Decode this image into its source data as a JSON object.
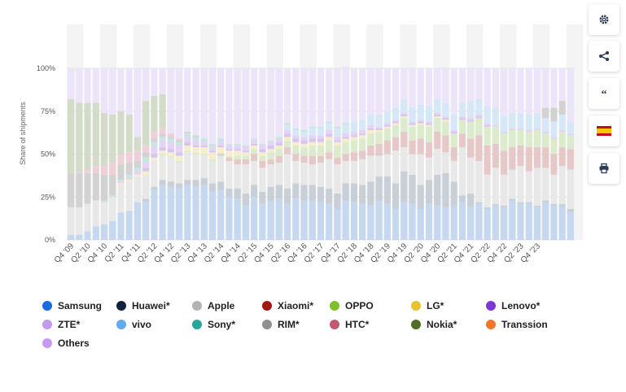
{
  "chart_data": {
    "type": "bar",
    "stacked": true,
    "ylabel": "Share of shipments",
    "ylim": [
      0,
      100
    ],
    "yticks": [
      "0%",
      "25%",
      "50%",
      "75%",
      "100%"
    ],
    "xtick_labels": [
      "Q4 '09",
      "Q2 '10",
      "Q4 '10",
      "Q2 '11",
      "Q4 '11",
      "Q2 '12",
      "Q4 '12",
      "Q2 '13",
      "Q4 '13",
      "Q2 '14",
      "Q4 '14",
      "Q2 '15",
      "Q4 '15",
      "Q2 '16",
      "Q4 '16",
      "Q2 '17",
      "Q4 '17",
      "Q2 '18",
      "Q4 '18",
      "Q2 '19",
      "Q4 '19",
      "Q2 '20",
      "Q4 '20",
      "Q2 '21",
      "Q4 '21",
      "Q2 '22",
      "Q4 '22",
      "Q2 '23",
      "Q4 '23"
    ],
    "series": [
      {
        "name": "Samsung",
        "color": "#c5d8f0"
      },
      {
        "name": "Huawei*",
        "color": "#c9cfd6"
      },
      {
        "name": "Apple",
        "color": "#e8e8e8"
      },
      {
        "name": "Xiaomi*",
        "color": "#e6c8c8"
      },
      {
        "name": "OPPO",
        "color": "#dcebcb"
      },
      {
        "name": "LG*",
        "color": "#f6edcc"
      },
      {
        "name": "Lenovo*",
        "color": "#d7c4f0"
      },
      {
        "name": "ZTE*",
        "color": "#e5d3f6"
      },
      {
        "name": "vivo",
        "color": "#d6e8f8"
      },
      {
        "name": "Sony*",
        "color": "#c8e6e1"
      },
      {
        "name": "RIM*",
        "color": "#d2d2d2"
      },
      {
        "name": "HTC*",
        "color": "#efcfd8"
      },
      {
        "name": "Nokia*",
        "color": "#d2dcc9"
      },
      {
        "name": "Transsion",
        "color": "#f8d6c4"
      },
      {
        "name": "Others",
        "color": "#ece4f8"
      }
    ],
    "values": [
      [
        3,
        0,
        16,
        0,
        0,
        0,
        0,
        0,
        0,
        0,
        20,
        0,
        43,
        0,
        18
      ],
      [
        3,
        0,
        16,
        0,
        0,
        0,
        0,
        0,
        0,
        0,
        20,
        1,
        40,
        0,
        20
      ],
      [
        5,
        0,
        16,
        0,
        0,
        0,
        0,
        0,
        0,
        0,
        18,
        2,
        39,
        0,
        20
      ],
      [
        8,
        0,
        15,
        0,
        0,
        0,
        0,
        0,
        0,
        0,
        16,
        4,
        37,
        0,
        20
      ],
      [
        9,
        0,
        13,
        0,
        0,
        0,
        0,
        0,
        0,
        1,
        15,
        5,
        31,
        0,
        26
      ],
      [
        11,
        0,
        14,
        0,
        0,
        0,
        0,
        0,
        0,
        1,
        12,
        7,
        28,
        0,
        27
      ],
      [
        16,
        0,
        16,
        0,
        0,
        1,
        0,
        1,
        0,
        1,
        9,
        6,
        25,
        0,
        25
      ],
      [
        17,
        0,
        17,
        0,
        0,
        1,
        0,
        1,
        0,
        2,
        7,
        6,
        22,
        0,
        27
      ],
      [
        22,
        0,
        15,
        0,
        0,
        1,
        0,
        2,
        0,
        2,
        4,
        6,
        8,
        0,
        40
      ],
      [
        22,
        2,
        14,
        0,
        0,
        2,
        2,
        3,
        0,
        3,
        3,
        4,
        26,
        0,
        19
      ],
      [
        29,
        2,
        15,
        0,
        0,
        2,
        2,
        4,
        0,
        3,
        2,
        4,
        21,
        0,
        16
      ],
      [
        32,
        3,
        14,
        0,
        1,
        2,
        2,
        4,
        0,
        2,
        2,
        3,
        20,
        0,
        15
      ],
      [
        31,
        3,
        14,
        0,
        1,
        2,
        2,
        4,
        0,
        2,
        1,
        2,
        0,
        0,
        38
      ],
      [
        30,
        3,
        12,
        0,
        1,
        3,
        2,
        4,
        0,
        2,
        1,
        1,
        0,
        0,
        41
      ],
      [
        32,
        3,
        16,
        0,
        1,
        3,
        2,
        3,
        0,
        2,
        1,
        0,
        0,
        0,
        37
      ],
      [
        31,
        4,
        15,
        0,
        1,
        3,
        1,
        3,
        0,
        2,
        1,
        0,
        0,
        0,
        39
      ],
      [
        32,
        4,
        13,
        0,
        1,
        4,
        1,
        2,
        0,
        2,
        0,
        0,
        0,
        0,
        41
      ],
      [
        28,
        5,
        13,
        0,
        1,
        4,
        1,
        2,
        0,
        2,
        0,
        0,
        0,
        0,
        44
      ],
      [
        29,
        5,
        15,
        1,
        1,
        3,
        1,
        2,
        0,
        2,
        0,
        0,
        0,
        0,
        41
      ],
      [
        25,
        5,
        16,
        2,
        1,
        3,
        1,
        2,
        0,
        1,
        0,
        0,
        0,
        0,
        44
      ],
      [
        24,
        6,
        14,
        3,
        2,
        3,
        1,
        2,
        0,
        1,
        0,
        0,
        0,
        0,
        44
      ],
      [
        20,
        7,
        17,
        3,
        2,
        2,
        1,
        2,
        0,
        1,
        0,
        0,
        0,
        0,
        45
      ],
      [
        25,
        7,
        14,
        4,
        3,
        2,
        1,
        2,
        0,
        1,
        0,
        0,
        0,
        0,
        41
      ],
      [
        21,
        7,
        14,
        4,
        3,
        2,
        2,
        2,
        0,
        1,
        0,
        0,
        0,
        0,
        44
      ],
      [
        23,
        8,
        13,
        3,
        4,
        2,
        2,
        2,
        0,
        1,
        0,
        0,
        0,
        0,
        42
      ],
      [
        24,
        8,
        13,
        4,
        4,
        2,
        2,
        2,
        0,
        1,
        0,
        0,
        0,
        0,
        40
      ],
      [
        21,
        9,
        20,
        4,
        4,
        2,
        2,
        2,
        3,
        1,
        0,
        0,
        0,
        0,
        32
      ],
      [
        24,
        9,
        13,
        4,
        5,
        2,
        2,
        2,
        3,
        1,
        0,
        0,
        0,
        0,
        35
      ],
      [
        23,
        9,
        13,
        4,
        5,
        2,
        2,
        2,
        3,
        1,
        0,
        0,
        0,
        0,
        36
      ],
      [
        23,
        9,
        12,
        5,
        6,
        2,
        2,
        2,
        4,
        1,
        0,
        0,
        0,
        0,
        34
      ],
      [
        22,
        9,
        14,
        4,
        6,
        2,
        2,
        2,
        4,
        1,
        0,
        0,
        0,
        0,
        34
      ],
      [
        21,
        9,
        17,
        4,
        7,
        2,
        2,
        2,
        4,
        1,
        0,
        0,
        0,
        0,
        31
      ],
      [
        18,
        9,
        17,
        4,
        7,
        2,
        1,
        2,
        5,
        1,
        0,
        0,
        0,
        0,
        34
      ],
      [
        23,
        10,
        13,
        4,
        7,
        2,
        1,
        2,
        5,
        1,
        0,
        0,
        0,
        0,
        33
      ],
      [
        22,
        11,
        13,
        5,
        7,
        2,
        1,
        2,
        6,
        0,
        0,
        0,
        0,
        0,
        31
      ],
      [
        21,
        11,
        15,
        5,
        7,
        2,
        1,
        2,
        6,
        0,
        0,
        0,
        0,
        0,
        30
      ],
      [
        20,
        14,
        15,
        6,
        7,
        2,
        1,
        2,
        6,
        0,
        0,
        0,
        0,
        0,
        27
      ],
      [
        23,
        14,
        12,
        7,
        7,
        1,
        1,
        1,
        7,
        0,
        0,
        0,
        0,
        0,
        27
      ],
      [
        21,
        16,
        13,
        8,
        7,
        1,
        1,
        1,
        7,
        0,
        0,
        0,
        0,
        0,
        25
      ],
      [
        18,
        15,
        19,
        8,
        7,
        1,
        1,
        1,
        7,
        0,
        0,
        0,
        0,
        0,
        23
      ],
      [
        22,
        18,
        14,
        9,
        8,
        1,
        1,
        1,
        8,
        0,
        0,
        0,
        0,
        0,
        18
      ],
      [
        21,
        17,
        12,
        8,
        8,
        1,
        1,
        1,
        8,
        0,
        0,
        0,
        0,
        0,
        23
      ],
      [
        18,
        14,
        18,
        9,
        8,
        1,
        1,
        1,
        9,
        0,
        0,
        0,
        0,
        0,
        21
      ],
      [
        21,
        14,
        13,
        9,
        9,
        1,
        1,
        1,
        9,
        0,
        0,
        0,
        0,
        0,
        22
      ],
      [
        20,
        18,
        15,
        10,
        8,
        1,
        1,
        1,
        8,
        0,
        0,
        0,
        0,
        0,
        18
      ],
      [
        19,
        20,
        12,
        10,
        8,
        1,
        1,
        1,
        8,
        0,
        0,
        0,
        0,
        0,
        20
      ],
      [
        20,
        14,
        12,
        8,
        8,
        0,
        1,
        1,
        9,
        0,
        0,
        0,
        0,
        0,
        27
      ],
      [
        22,
        4,
        28,
        8,
        8,
        0,
        1,
        1,
        8,
        0,
        0,
        0,
        0,
        0,
        20
      ],
      [
        19,
        8,
        21,
        11,
        10,
        0,
        1,
        1,
        10,
        0,
        0,
        0,
        0,
        0,
        19
      ],
      [
        21,
        1,
        24,
        15,
        10,
        0,
        1,
        1,
        9,
        0,
        0,
        0,
        0,
        0,
        18
      ],
      [
        18,
        1,
        19,
        17,
        11,
        0,
        1,
        1,
        10,
        0,
        0,
        0,
        0,
        0,
        22
      ],
      [
        20,
        1,
        21,
        14,
        10,
        0,
        0,
        1,
        10,
        0,
        0,
        0,
        0,
        0,
        23
      ],
      [
        19,
        1,
        18,
        14,
        10,
        0,
        0,
        1,
        9,
        0,
        0,
        0,
        0,
        0,
        28
      ],
      [
        23,
        1,
        17,
        13,
        10,
        0,
        0,
        1,
        9,
        0,
        0,
        0,
        0,
        0,
        26
      ],
      [
        21,
        1,
        21,
        12,
        9,
        0,
        0,
        1,
        9,
        0,
        0,
        0,
        0,
        0,
        26
      ],
      [
        21,
        1,
        18,
        14,
        9,
        0,
        0,
        1,
        9,
        0,
        0,
        0,
        0,
        0,
        27
      ],
      [
        19,
        1,
        22,
        12,
        10,
        0,
        0,
        1,
        9,
        0,
        0,
        0,
        0,
        0,
        26
      ],
      [
        22,
        1,
        19,
        12,
        8,
        0,
        0,
        1,
        8,
        0,
        6,
        0,
        0,
        0,
        23
      ],
      [
        20,
        1,
        17,
        12,
        9,
        0,
        0,
        1,
        9,
        0,
        8,
        0,
        0,
        0,
        23
      ],
      [
        19,
        2,
        22,
        11,
        9,
        0,
        0,
        1,
        9,
        0,
        8,
        0,
        0,
        0,
        19
      ],
      [
        16,
        2,
        23,
        12,
        8,
        0,
        0,
        1,
        7,
        0,
        0,
        0,
        0,
        0,
        31
      ]
    ]
  },
  "legend": [
    {
      "name": "Samsung",
      "color": "#1a6ae0"
    },
    {
      "name": "Huawei*",
      "color": "#10223a"
    },
    {
      "name": "Apple",
      "color": "#b3b3b3"
    },
    {
      "name": "Xiaomi*",
      "color": "#a31515"
    },
    {
      "name": "OPPO",
      "color": "#7fc12a"
    },
    {
      "name": "LG*",
      "color": "#e6c130"
    },
    {
      "name": "Lenovo*",
      "color": "#7f36d6"
    },
    {
      "name": "ZTE*",
      "color": "#c39af0"
    },
    {
      "name": "vivo",
      "color": "#64aaf2"
    },
    {
      "name": "Sony*",
      "color": "#2aa59a"
    },
    {
      "name": "RIM*",
      "color": "#8f8f8f"
    },
    {
      "name": "HTC*",
      "color": "#c45870"
    },
    {
      "name": "Nokia*",
      "color": "#4f6e25"
    },
    {
      "name": "Transsion",
      "color": "#f2772a"
    },
    {
      "name": "Others",
      "color": "#c69af4"
    }
  ],
  "toolbar": [
    {
      "name": "settings-button",
      "icon": "gear-icon"
    },
    {
      "name": "share-button",
      "icon": "share-icon"
    },
    {
      "name": "cite-button",
      "icon": "quote-icon"
    },
    {
      "name": "language-button",
      "icon": "spain-flag-icon"
    },
    {
      "name": "print-button",
      "icon": "print-icon"
    }
  ]
}
